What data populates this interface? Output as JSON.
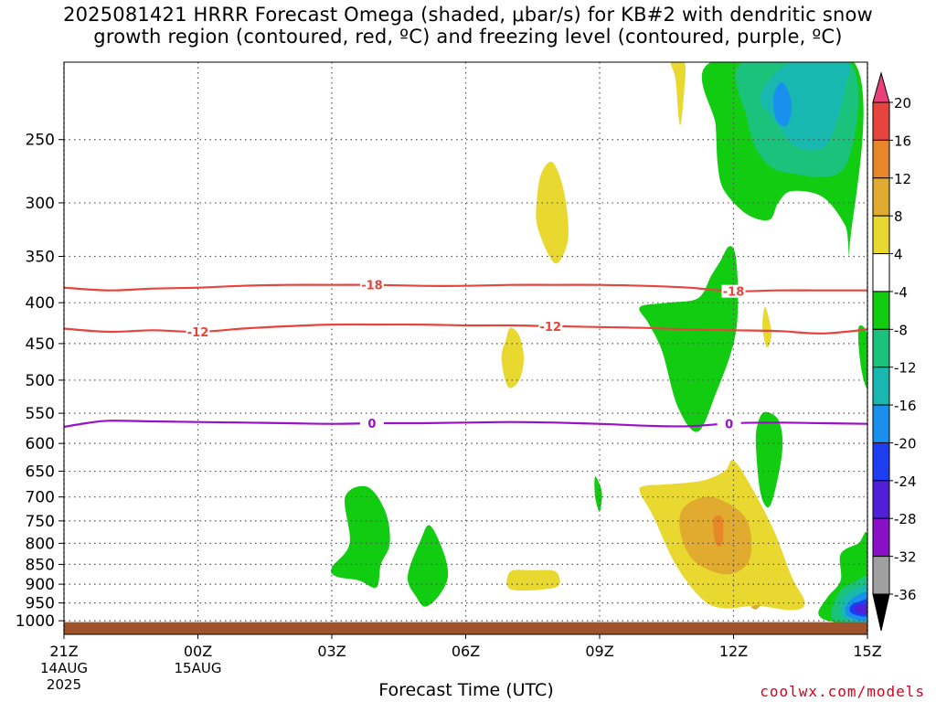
{
  "title_line1": "2025081421 HRRR Forecast Omega (shaded, μbar/s) for KB#2 with dendritic snow",
  "title_line2": "growth region (contoured, red, ºC) and freezing level (contoured, purple, ºC)",
  "xlabel": "Forecast Time (UTC)",
  "credit": "coolwx.com/models",
  "chart_data": {
    "type": "time-height",
    "title": "2025081421 HRRR Forecast Omega (shaded, μbar/s) for KB#2 with dendritic snow growth region (contoured, red, ºC) and freezing level (contoured, purple, ºC)",
    "xlabel": "Forecast Time (UTC)",
    "ylabel": "",
    "x_range_hours": [
      0,
      18
    ],
    "y_range_hPa": [
      200,
      1040
    ],
    "y_scale": "log",
    "grid": true,
    "x_ticks": [
      {
        "h": 0,
        "label": "21Z",
        "sub1": "14AUG",
        "sub2": "2025"
      },
      {
        "h": 3,
        "label": "00Z",
        "sub1": "15AUG",
        "sub2": ""
      },
      {
        "h": 6,
        "label": "03Z",
        "sub1": "",
        "sub2": ""
      },
      {
        "h": 9,
        "label": "06Z",
        "sub1": "",
        "sub2": ""
      },
      {
        "h": 12,
        "label": "09Z",
        "sub1": "",
        "sub2": ""
      },
      {
        "h": 15,
        "label": "12Z",
        "sub1": "",
        "sub2": ""
      },
      {
        "h": 18,
        "label": "15Z",
        "sub1": "",
        "sub2": ""
      }
    ],
    "y_ticks": [
      250,
      300,
      350,
      400,
      450,
      500,
      550,
      600,
      650,
      700,
      750,
      800,
      850,
      900,
      950,
      1000
    ],
    "colorbar": {
      "labels": [
        "20",
        "16",
        "12",
        "8",
        "4",
        "-4",
        "-8",
        "-12",
        "-16",
        "-20",
        "-24",
        "-28",
        "-32",
        "-36"
      ],
      "bins": [
        {
          "color": "#e8417a"
        },
        {
          "color": "#e6443c"
        },
        {
          "color": "#e8862a"
        },
        {
          "color": "#e0ab2e"
        },
        {
          "color": "#e8d830"
        },
        {
          "color": "#ffffff"
        },
        {
          "color": "#12cc12"
        },
        {
          "color": "#1ac27c"
        },
        {
          "color": "#18b8b0"
        },
        {
          "color": "#1a90ee"
        },
        {
          "color": "#1e3cf0"
        },
        {
          "color": "#5020d8"
        },
        {
          "color": "#8a10c8"
        },
        {
          "color": "#a0a0a0"
        },
        {
          "color": "#000000"
        }
      ]
    },
    "contours": [
      {
        "name": "-18",
        "color": "#e6443c",
        "label_hours": [
          6.9,
          15.0
        ],
        "points": [
          [
            0,
            383
          ],
          [
            1,
            386
          ],
          [
            2,
            384
          ],
          [
            3,
            383
          ],
          [
            4,
            381
          ],
          [
            5,
            380
          ],
          [
            6,
            380
          ],
          [
            7,
            380
          ],
          [
            8,
            381
          ],
          [
            9,
            381
          ],
          [
            10,
            380
          ],
          [
            11,
            380
          ],
          [
            12,
            380
          ],
          [
            13,
            381
          ],
          [
            14,
            383
          ],
          [
            15,
            387
          ],
          [
            16,
            386
          ],
          [
            17,
            386
          ],
          [
            18,
            386
          ]
        ]
      },
      {
        "name": "-12",
        "color": "#e6443c",
        "label_hours": [
          3.0,
          10.9
        ],
        "points": [
          [
            0,
            431
          ],
          [
            1,
            435
          ],
          [
            2,
            433
          ],
          [
            3,
            435
          ],
          [
            4,
            431
          ],
          [
            5,
            428
          ],
          [
            6,
            426
          ],
          [
            7,
            426
          ],
          [
            8,
            426
          ],
          [
            9,
            427
          ],
          [
            10,
            427
          ],
          [
            11,
            428
          ],
          [
            12,
            429
          ],
          [
            13,
            430
          ],
          [
            14,
            432
          ],
          [
            15,
            433
          ],
          [
            16,
            434
          ],
          [
            17,
            437
          ],
          [
            18,
            432
          ]
        ]
      },
      {
        "name": "0",
        "color": "#9a10c8",
        "label_hours": [
          6.9,
          14.9
        ],
        "points": [
          [
            0,
            572
          ],
          [
            0.5,
            566
          ],
          [
            1,
            562
          ],
          [
            2,
            563
          ],
          [
            3,
            564
          ],
          [
            4,
            565
          ],
          [
            5,
            566
          ],
          [
            6,
            567
          ],
          [
            7,
            566
          ],
          [
            8,
            566
          ],
          [
            9,
            565
          ],
          [
            10,
            564
          ],
          [
            11,
            565
          ],
          [
            12,
            567
          ],
          [
            13,
            570
          ],
          [
            14,
            571
          ],
          [
            15,
            566
          ],
          [
            16,
            565
          ],
          [
            17,
            566
          ],
          [
            18,
            567
          ]
        ]
      }
    ],
    "omega_regions": [
      {
        "value": 6,
        "points": [
          [
            13.6,
            200
          ],
          [
            13.7,
            210
          ],
          [
            13.8,
            240
          ],
          [
            13.9,
            215
          ],
          [
            13.9,
            200
          ]
        ]
      },
      {
        "value": 6,
        "points": [
          [
            10.7,
            275
          ],
          [
            10.95,
            267
          ],
          [
            11.2,
            290
          ],
          [
            11.3,
            330
          ],
          [
            11.1,
            355
          ],
          [
            10.9,
            352
          ],
          [
            10.6,
            320
          ],
          [
            10.6,
            295
          ]
        ]
      },
      {
        "value": 6,
        "points": [
          [
            10.0,
            430
          ],
          [
            10.2,
            440
          ],
          [
            10.3,
            470
          ],
          [
            10.2,
            500
          ],
          [
            9.95,
            510
          ],
          [
            9.8,
            470
          ],
          [
            9.9,
            445
          ]
        ]
      },
      {
        "value": 6,
        "points": [
          [
            15.7,
            405
          ],
          [
            15.8,
            420
          ],
          [
            15.85,
            440
          ],
          [
            15.75,
            455
          ],
          [
            15.65,
            430
          ]
        ]
      },
      {
        "value": 6,
        "points": [
          [
            10.0,
            868
          ],
          [
            10.5,
            865
          ],
          [
            11.0,
            867
          ],
          [
            11.1,
            900
          ],
          [
            10.8,
            913
          ],
          [
            10.0,
            913
          ]
        ]
      },
      {
        "value": 6,
        "points": [
          [
            13.0,
            678
          ],
          [
            13.5,
            675
          ],
          [
            14.3,
            668
          ],
          [
            14.8,
            650
          ],
          [
            15.0,
            630
          ],
          [
            15.4,
            680
          ],
          [
            15.9,
            770
          ],
          [
            16.3,
            880
          ],
          [
            16.6,
            950
          ],
          [
            16.3,
            970
          ],
          [
            15.5,
            958
          ],
          [
            14.8,
            965
          ],
          [
            14.3,
            940
          ],
          [
            13.7,
            850
          ],
          [
            13.2,
            740
          ],
          [
            12.9,
            690
          ]
        ]
      },
      {
        "value": 10,
        "points": [
          [
            13.9,
            720
          ],
          [
            14.5,
            700
          ],
          [
            15.2,
            735
          ],
          [
            15.4,
            790
          ],
          [
            15.3,
            850
          ],
          [
            14.8,
            875
          ],
          [
            14.1,
            840
          ],
          [
            13.8,
            770
          ]
        ]
      },
      {
        "value": 14,
        "points": [
          [
            14.55,
            745
          ],
          [
            14.75,
            745
          ],
          [
            14.75,
            800
          ],
          [
            14.6,
            800
          ]
        ]
      },
      {
        "value": 10,
        "points": [
          [
            15.4,
            960
          ],
          [
            15.6,
            955
          ],
          [
            15.5,
            968
          ]
        ]
      },
      {
        "value": -6,
        "points": [
          [
            14.5,
            200
          ],
          [
            14.6,
            240
          ],
          [
            14.65,
            270
          ],
          [
            14.8,
            290
          ],
          [
            15.3,
            310
          ],
          [
            15.8,
            315
          ],
          [
            16.0,
            300
          ],
          [
            16.3,
            290
          ],
          [
            17.0,
            295
          ],
          [
            17.5,
            320
          ],
          [
            17.6,
            340
          ],
          [
            17.7,
            200
          ]
        ]
      },
      {
        "value": -10,
        "points": [
          [
            15.2,
            200
          ],
          [
            15.3,
            235
          ],
          [
            15.6,
            262
          ],
          [
            16.2,
            275
          ],
          [
            17.5,
            270
          ],
          [
            17.6,
            200
          ]
        ]
      },
      {
        "value": -14,
        "points": [
          [
            15.6,
            220
          ],
          [
            15.9,
            235
          ],
          [
            16.4,
            255
          ],
          [
            17.1,
            253
          ],
          [
            17.5,
            215
          ],
          [
            17.5,
            200
          ],
          [
            16.3,
            200
          ]
        ]
      },
      {
        "value": -18,
        "points": [
          [
            15.9,
            220
          ],
          [
            16.1,
            212
          ],
          [
            16.3,
            225
          ],
          [
            16.2,
            240
          ],
          [
            15.95,
            236
          ]
        ]
      },
      {
        "value": -6,
        "points": [
          [
            14.9,
            340
          ],
          [
            15.05,
            350
          ],
          [
            15.1,
            400
          ],
          [
            15.0,
            450
          ],
          [
            14.6,
            520
          ],
          [
            14.2,
            580
          ],
          [
            13.75,
            540
          ],
          [
            13.4,
            460
          ],
          [
            13.1,
            425
          ],
          [
            12.9,
            405
          ],
          [
            13.5,
            400
          ],
          [
            14.2,
            395
          ],
          [
            14.5,
            370
          ],
          [
            14.7,
            355
          ]
        ]
      },
      {
        "value": -6,
        "points": [
          [
            15.7,
            548
          ],
          [
            16.0,
            560
          ],
          [
            16.1,
            600
          ],
          [
            16.0,
            660
          ],
          [
            15.8,
            720
          ],
          [
            15.6,
            690
          ],
          [
            15.5,
            600
          ],
          [
            15.55,
            565
          ]
        ]
      },
      {
        "value": -6,
        "points": [
          [
            17.8,
            430
          ],
          [
            18.0,
            440
          ],
          [
            18.0,
            510
          ],
          [
            17.85,
            480
          ]
        ]
      },
      {
        "value": -6,
        "points": [
          [
            11.9,
            660
          ],
          [
            12.05,
            690
          ],
          [
            12.0,
            730
          ],
          [
            11.9,
            700
          ]
        ]
      },
      {
        "value": -6,
        "points": [
          [
            6.3,
            700
          ],
          [
            6.8,
            680
          ],
          [
            7.2,
            730
          ],
          [
            7.3,
            800
          ],
          [
            7.1,
            850
          ],
          [
            7.0,
            908
          ],
          [
            6.6,
            890
          ],
          [
            6.1,
            880
          ],
          [
            6.0,
            858
          ],
          [
            6.4,
            800
          ]
        ]
      },
      {
        "value": -6,
        "points": [
          [
            8.0,
            790
          ],
          [
            8.2,
            760
          ],
          [
            8.5,
            820
          ],
          [
            8.6,
            880
          ],
          [
            8.4,
            930
          ],
          [
            8.1,
            960
          ],
          [
            7.9,
            935
          ],
          [
            7.7,
            880
          ]
        ]
      },
      {
        "value": -6,
        "points": [
          [
            17.4,
            825
          ],
          [
            17.8,
            800
          ],
          [
            18.0,
            785
          ],
          [
            18.0,
            1002
          ],
          [
            17.2,
            1002
          ],
          [
            16.9,
            980
          ],
          [
            17.1,
            935
          ],
          [
            17.4,
            890
          ]
        ]
      },
      {
        "value": -10,
        "points": [
          [
            17.4,
            915
          ],
          [
            17.7,
            895
          ],
          [
            18.0,
            885
          ],
          [
            18.0,
            1002
          ],
          [
            17.3,
            1000
          ],
          [
            17.2,
            970
          ]
        ]
      },
      {
        "value": -14,
        "points": [
          [
            17.5,
            930
          ],
          [
            17.8,
            910
          ],
          [
            18.0,
            905
          ],
          [
            18.0,
            1000
          ],
          [
            17.5,
            995
          ],
          [
            17.4,
            970
          ]
        ]
      },
      {
        "value": -18,
        "points": [
          [
            17.6,
            945
          ],
          [
            17.8,
            928
          ],
          [
            18.0,
            925
          ],
          [
            18.0,
            995
          ],
          [
            17.6,
            990
          ],
          [
            17.5,
            968
          ]
        ]
      },
      {
        "value": -22,
        "points": [
          [
            17.65,
            955
          ],
          [
            17.85,
            945
          ],
          [
            18.0,
            942
          ],
          [
            18.0,
            985
          ],
          [
            17.7,
            982
          ],
          [
            17.6,
            970
          ]
        ]
      },
      {
        "value": -26,
        "points": [
          [
            17.72,
            960
          ],
          [
            17.9,
            955
          ],
          [
            18.0,
            955
          ],
          [
            18.0,
            978
          ],
          [
            17.75,
            975
          ]
        ]
      }
    ],
    "ground_pressure_hPa": 1020
  }
}
